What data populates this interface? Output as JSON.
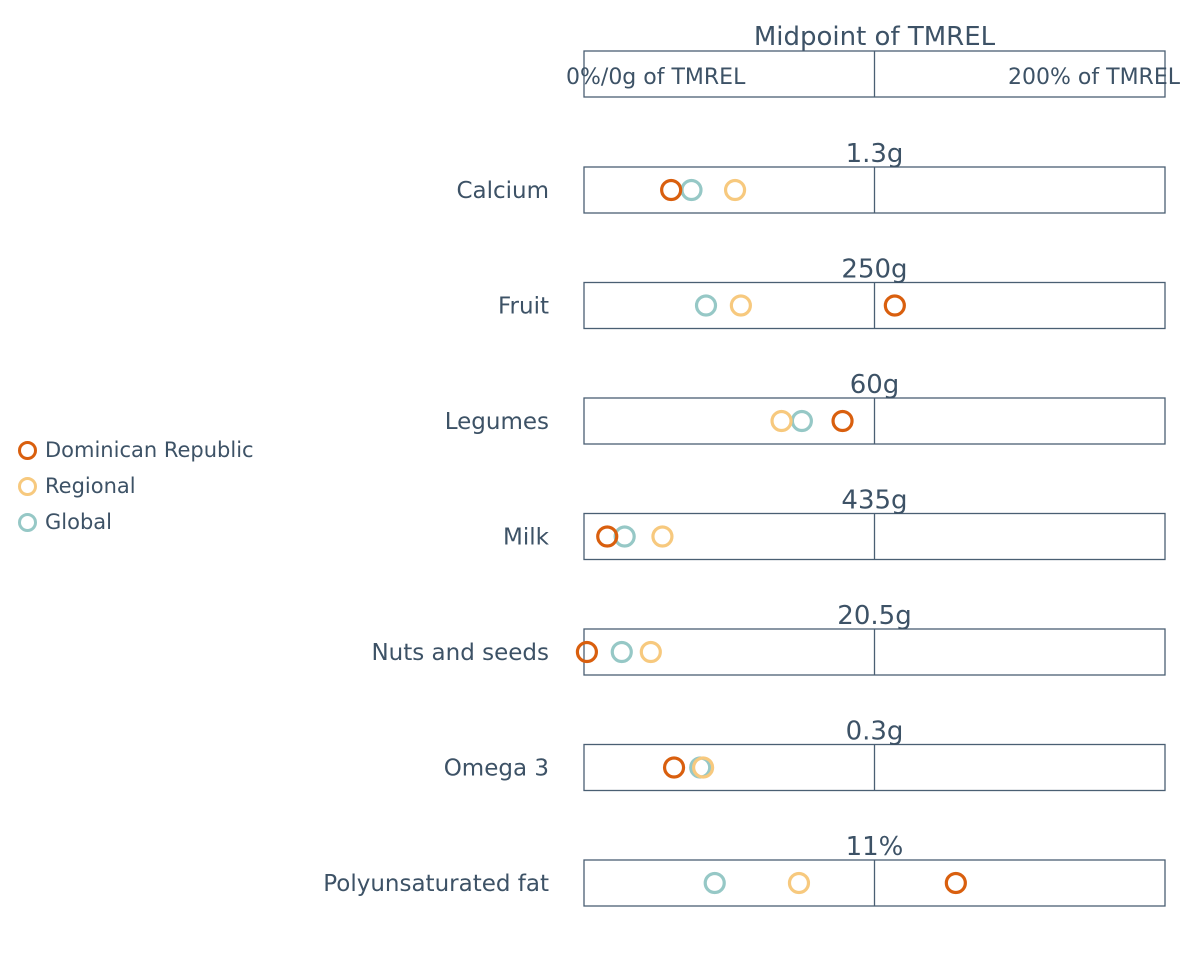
{
  "chart_data": {
    "type": "scatter",
    "header": {
      "title": "Midpoint of TMREL",
      "left_label": "0%/0g of TMREL",
      "right_label": "200% of TMREL"
    },
    "x_unit": "% of TMREL",
    "xlim": [
      0,
      200
    ],
    "midpoint": 100,
    "categories": [
      {
        "label": "Calcium",
        "midpoint_value": "1.3g"
      },
      {
        "label": "Fruit",
        "midpoint_value": "250g"
      },
      {
        "label": "Legumes",
        "midpoint_value": "60g"
      },
      {
        "label": "Milk",
        "midpoint_value": "435g"
      },
      {
        "label": "Nuts and seeds",
        "midpoint_value": "20.5g"
      },
      {
        "label": "Omega 3",
        "midpoint_value": "0.3g"
      },
      {
        "label": "Polyunsaturated fat",
        "midpoint_value": "11%"
      }
    ],
    "series": [
      {
        "name": "Dominican Republic",
        "color": "#d95f0e",
        "values": [
          30,
          107,
          89,
          8,
          1,
          31,
          128
        ]
      },
      {
        "name": "Regional",
        "color": "#f7c97e",
        "values": [
          52,
          54,
          68,
          27,
          23,
          41,
          74
        ]
      },
      {
        "name": "Global",
        "color": "#96c8c6",
        "values": [
          37,
          42,
          75,
          14,
          13,
          40,
          45
        ]
      }
    ],
    "legend_position": "left",
    "grid": false
  }
}
